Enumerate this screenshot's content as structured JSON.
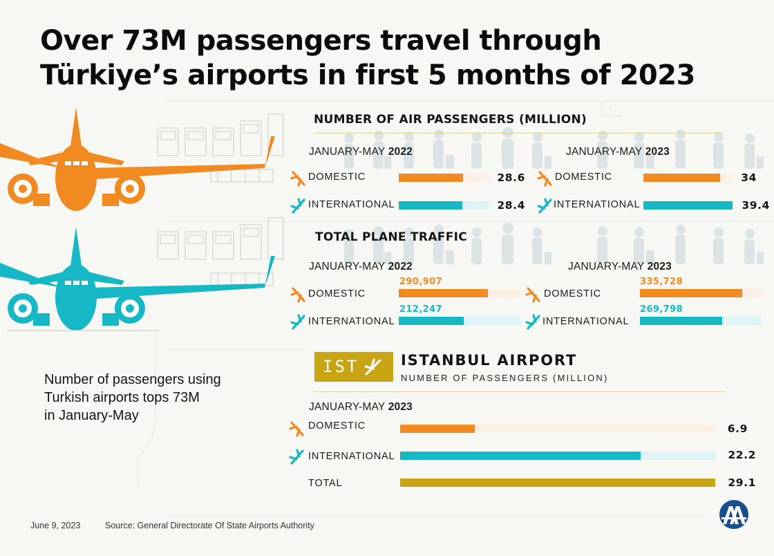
{
  "title_line1": "Over 73M passengers travel through",
  "title_line2": "Türkiye’s airports in first 5 months of 2023",
  "side_text": [
    "Number of passengers using",
    "Turkish airports tops 73M",
    "in January-May"
  ],
  "colors": {
    "domestic": "#f28a22",
    "domestic_track": "#fdefe3",
    "international": "#17b8c6",
    "international_track": "#ddf3f6",
    "total": "#c9a515",
    "rule": "#d8cf94"
  },
  "icons": {
    "domestic": "plane-landing-icon",
    "international": "plane-takeoff-icon",
    "badge": "plane-icon",
    "logo": "aa-logo"
  },
  "passengers": {
    "heading": "NUMBER OF AIR PASSENGERS (MILLION)",
    "period_prefix": "JANUARY-MAY",
    "year_2022": "2022",
    "year_2023": "2023",
    "domestic_label": "DOMESTIC",
    "international_label": "INTERNATIONAL",
    "dom_2022": "28.6",
    "int_2022": "28.4",
    "dom_2023": "34",
    "int_2023": "39.4"
  },
  "traffic": {
    "heading": "TOTAL PLANE TRAFFIC",
    "period_prefix": "JANUARY-MAY",
    "year_2022": "2022",
    "year_2023": "2023",
    "domestic_label": "DOMESTIC",
    "international_label": "INTERNATIONAL",
    "dom_2022": "290,907",
    "int_2022": "212,247",
    "dom_2023": "335,728",
    "int_2023": "269,798"
  },
  "istanbul": {
    "badge": "IST",
    "name": "ISTANBUL AIRPORT",
    "subtitle": "NUMBER OF PASSENGERS (MILLION)",
    "period_prefix": "JANUARY-MAY",
    "year": "2023",
    "domestic_label": "DOMESTIC",
    "international_label": "INTERNATIONAL",
    "total_label": "TOTAL",
    "dom": "6.9",
    "int": "22.2",
    "total": "29.1"
  },
  "footer": {
    "date": "June 9, 2023",
    "source": "Source: General Directorate Of State Airports Authority"
  },
  "chart_data": [
    {
      "type": "bar",
      "orientation": "horizontal",
      "title": "NUMBER OF AIR PASSENGERS (MILLION)",
      "categories": [
        "DOMESTIC",
        "INTERNATIONAL"
      ],
      "series": [
        {
          "name": "JANUARY-MAY 2022",
          "values": [
            28.6,
            28.4
          ]
        },
        {
          "name": "JANUARY-MAY 2023",
          "values": [
            34,
            39.4
          ]
        }
      ],
      "xlim": [
        0,
        40
      ]
    },
    {
      "type": "bar",
      "orientation": "horizontal",
      "title": "TOTAL PLANE TRAFFIC",
      "categories": [
        "DOMESTIC",
        "INTERNATIONAL"
      ],
      "series": [
        {
          "name": "JANUARY-MAY 2022",
          "values": [
            290907,
            212247
          ]
        },
        {
          "name": "JANUARY-MAY 2023",
          "values": [
            335728,
            269798
          ]
        }
      ],
      "xlim": [
        0,
        400000
      ]
    },
    {
      "type": "bar",
      "orientation": "horizontal",
      "title": "ISTANBUL AIRPORT",
      "subtitle": "NUMBER OF PASSENGERS (MILLION)",
      "categories": [
        "DOMESTIC",
        "INTERNATIONAL",
        "TOTAL"
      ],
      "series": [
        {
          "name": "JANUARY-MAY 2023",
          "values": [
            6.9,
            22.2,
            29.1
          ]
        }
      ],
      "xlim": [
        0,
        29.1
      ]
    }
  ]
}
